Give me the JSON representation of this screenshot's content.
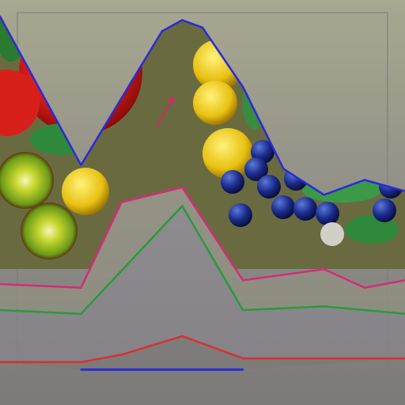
{
  "chart_data": {
    "type": "area",
    "title": "",
    "xlabel": "",
    "ylabel": "",
    "legend": "none",
    "grid": false,
    "xlim": [
      0,
      10
    ],
    "ylim": [
      0,
      100
    ],
    "series": [
      {
        "name": "blue",
        "color": "#2a2ad8",
        "x": [
          0,
          2,
          4,
          4.5,
          5,
          6,
          7,
          8,
          9,
          10
        ],
        "values": [
          99,
          59,
          95,
          98,
          96,
          80,
          58,
          51,
          55,
          52
        ]
      },
      {
        "name": "magenta",
        "color": "#d62a7a",
        "x": [
          0,
          2,
          3,
          4.5,
          6,
          8,
          9,
          10
        ],
        "values": [
          27,
          26,
          49,
          53,
          28,
          31,
          26,
          28
        ]
      },
      {
        "name": "green",
        "color": "#2a9a3a",
        "x": [
          0,
          2,
          4.5,
          6,
          8,
          10
        ],
        "values": [
          20,
          19,
          48,
          20,
          21,
          19
        ]
      },
      {
        "name": "red",
        "color": "#d83030",
        "x": [
          0,
          2,
          3,
          4.5,
          6,
          10
        ],
        "values": [
          6,
          6,
          8,
          13,
          7,
          7
        ]
      },
      {
        "name": "base",
        "color": "#2a2ad8",
        "x": [
          2,
          6
        ],
        "values": [
          4,
          4
        ]
      }
    ]
  }
}
